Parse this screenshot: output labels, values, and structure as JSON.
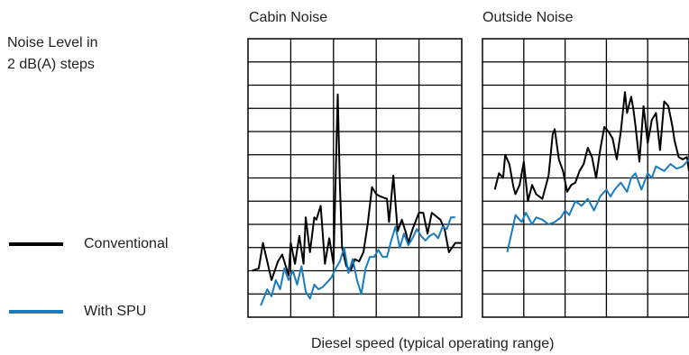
{
  "ylabel": [
    "Noise Level in",
    "2 dB(A) steps"
  ],
  "xlabel": "Diesel speed (typical operating range)",
  "colors": {
    "conventional": "#000000",
    "spu": "#1a7cc0",
    "grid": "#000000"
  },
  "chart_data": [
    {
      "type": "line",
      "title": "Cabin Noise",
      "grid": true,
      "x_divisions": 5,
      "y_divisions": 12,
      "xlim": [
        0,
        5
      ],
      "ylim": [
        0,
        12
      ],
      "series": [
        {
          "name": "Conventional",
          "x": [
            0.1,
            0.25,
            0.35,
            0.5,
            0.55,
            0.7,
            0.8,
            0.95,
            1.0,
            1.1,
            1.2,
            1.3,
            1.35,
            1.45,
            1.55,
            1.6,
            1.7,
            1.8,
            1.9,
            2.0,
            2.1,
            2.15,
            2.2,
            2.3,
            2.4,
            2.5,
            2.6,
            2.7,
            2.8,
            2.9,
            3.0,
            3.1,
            3.25,
            3.3,
            3.4,
            3.5,
            3.6,
            3.7,
            3.75,
            3.85,
            4.0,
            4.1,
            4.2,
            4.3,
            4.5,
            4.6,
            4.7,
            4.85,
            5.0
          ],
          "y": [
            2.0,
            2.1,
            3.2,
            2.0,
            1.6,
            2.4,
            2.7,
            1.8,
            3.2,
            2.3,
            3.5,
            2.3,
            4.3,
            2.8,
            4.3,
            4.2,
            4.8,
            2.3,
            3.4,
            2.3,
            9.6,
            5.7,
            3.0,
            2.2,
            2.0,
            2.5,
            2.4,
            2.8,
            4.0,
            5.6,
            5.3,
            5.2,
            5.1,
            4.1,
            6.1,
            3.7,
            4.2,
            3.6,
            3.2,
            3.8,
            4.5,
            4.5,
            3.6,
            4.5,
            4.2,
            3.8,
            2.8,
            3.2,
            3.2
          ]
        },
        {
          "name": "With SPU",
          "x": [
            0.3,
            0.45,
            0.55,
            0.65,
            0.75,
            0.85,
            0.95,
            1.05,
            1.15,
            1.25,
            1.35,
            1.45,
            1.55,
            1.65,
            1.75,
            1.85,
            1.95,
            2.05,
            2.15,
            2.25,
            2.35,
            2.45,
            2.55,
            2.65,
            2.75,
            2.85,
            2.95,
            3.05,
            3.15,
            3.25,
            3.35,
            3.45,
            3.55,
            3.65,
            3.75,
            3.85,
            3.95,
            4.05,
            4.15,
            4.25,
            4.35,
            4.45,
            4.55,
            4.65,
            4.75,
            4.85
          ],
          "y": [
            0.5,
            1.2,
            0.9,
            1.6,
            1.2,
            2.1,
            1.6,
            2.0,
            1.4,
            2.2,
            1.1,
            0.8,
            1.4,
            1.2,
            1.3,
            1.5,
            1.7,
            2.1,
            2.4,
            3.0,
            1.9,
            2.5,
            1.6,
            1.0,
            2.1,
            2.6,
            2.6,
            2.9,
            2.6,
            2.6,
            3.3,
            3.9,
            3.0,
            3.6,
            3.1,
            3.4,
            3.8,
            3.5,
            3.3,
            3.5,
            3.6,
            3.4,
            3.9,
            3.8,
            4.3,
            4.3
          ]
        }
      ]
    },
    {
      "type": "line",
      "title": "Outside Noise",
      "grid": true,
      "x_divisions": 5,
      "y_divisions": 12,
      "xlim": [
        0,
        5
      ],
      "ylim": [
        0,
        12
      ],
      "series": [
        {
          "name": "Conventional",
          "x": [
            0.3,
            0.4,
            0.5,
            0.55,
            0.65,
            0.75,
            0.8,
            0.9,
            1.0,
            1.1,
            1.2,
            1.3,
            1.45,
            1.6,
            1.7,
            1.75,
            1.85,
            1.95,
            2.05,
            2.15,
            2.25,
            2.35,
            2.45,
            2.55,
            2.65,
            2.75,
            2.85,
            2.95,
            3.05,
            3.15,
            3.25,
            3.35,
            3.45,
            3.5,
            3.6,
            3.65,
            3.7,
            3.8,
            3.9,
            4.0,
            4.1,
            4.2,
            4.3,
            4.4,
            4.5,
            4.6,
            4.65,
            4.75,
            4.85,
            4.95,
            5.0
          ],
          "y": [
            5.5,
            6.2,
            6.0,
            7.0,
            6.6,
            5.6,
            5.3,
            5.7,
            6.7,
            5.0,
            5.7,
            5.3,
            5.1,
            6.1,
            7.9,
            8.1,
            6.8,
            6.3,
            5.4,
            5.7,
            5.8,
            6.3,
            6.6,
            7.3,
            6.9,
            6.0,
            7.2,
            8.2,
            8.0,
            7.7,
            6.8,
            8.0,
            9.7,
            8.8,
            9.5,
            9.0,
            8.3,
            6.7,
            9.1,
            7.5,
            8.5,
            8.8,
            7.2,
            9.3,
            9.1,
            8.2,
            7.6,
            6.9,
            6.8,
            6.9,
            6.3
          ]
        },
        {
          "name": "With SPU",
          "x": [
            0.6,
            0.7,
            0.8,
            0.95,
            1.05,
            1.2,
            1.3,
            1.45,
            1.6,
            1.75,
            1.9,
            2.0,
            2.1,
            2.25,
            2.4,
            2.55,
            2.7,
            2.85,
            3.0,
            3.1,
            3.2,
            3.35,
            3.5,
            3.6,
            3.7,
            3.85,
            4.0,
            4.1,
            4.2,
            4.3,
            4.4,
            4.55,
            4.7,
            4.85,
            5.0
          ],
          "y": [
            2.8,
            3.6,
            4.4,
            4.1,
            4.5,
            4.0,
            4.3,
            4.2,
            4.0,
            4.1,
            4.3,
            4.6,
            4.4,
            5.0,
            4.8,
            5.1,
            4.6,
            5.2,
            5.5,
            5.2,
            5.5,
            5.8,
            5.4,
            6.0,
            6.2,
            5.5,
            6.2,
            6.0,
            6.5,
            6.4,
            6.3,
            6.6,
            6.4,
            6.5,
            6.8
          ]
        }
      ]
    }
  ]
}
